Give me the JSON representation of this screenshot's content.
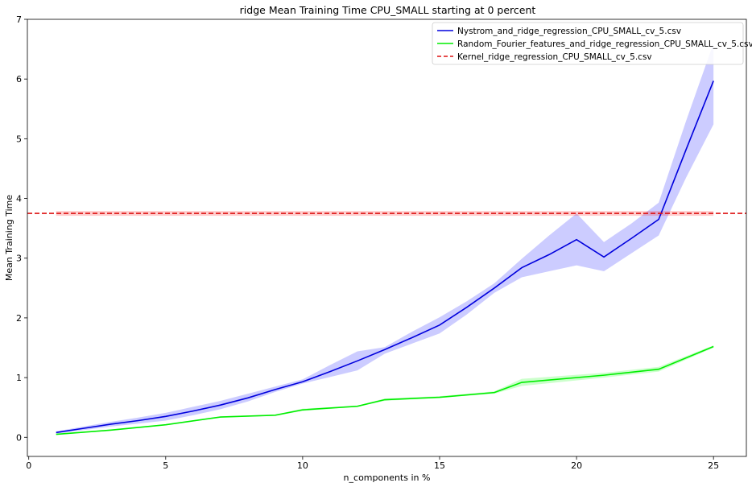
{
  "chart_data": {
    "type": "line",
    "title": "ridge Mean Training Time CPU_SMALL starting at 0 percent",
    "xlabel": "n_components in %",
    "ylabel": "Mean Training Time",
    "xlim": [
      -0.05,
      26.2
    ],
    "ylim": [
      -0.32,
      7.0
    ],
    "xticks": [
      0,
      5,
      10,
      15,
      20,
      25
    ],
    "yticks": [
      0,
      1,
      2,
      3,
      4,
      5,
      6,
      7
    ],
    "grid": false,
    "legend_position": "top-right",
    "series": [
      {
        "name": "Nystrom_and_ridge_regression_CPU_SMALL_cv_5.csv",
        "color": "#0000dd",
        "band_color": "#0000ff",
        "line_style": "solid",
        "x": [
          1,
          2,
          3,
          4,
          5,
          6,
          7,
          8,
          9,
          10,
          11,
          12,
          13,
          14,
          15,
          16,
          17,
          18,
          19,
          20,
          21,
          22,
          23,
          24,
          25
        ],
        "y": [
          0.08,
          0.15,
          0.22,
          0.28,
          0.35,
          0.44,
          0.54,
          0.66,
          0.8,
          0.93,
          1.1,
          1.28,
          1.47,
          1.67,
          1.88,
          2.18,
          2.5,
          2.84,
          3.06,
          3.31,
          3.02,
          3.33,
          3.65,
          4.82,
          5.97
        ],
        "lower": [
          0.06,
          0.12,
          0.18,
          0.23,
          0.28,
          0.37,
          0.47,
          0.6,
          0.76,
          0.9,
          1.01,
          1.12,
          1.4,
          1.57,
          1.74,
          2.06,
          2.42,
          2.68,
          2.78,
          2.88,
          2.78,
          3.08,
          3.38,
          4.35,
          5.24
        ],
        "upper": [
          0.1,
          0.18,
          0.26,
          0.33,
          0.41,
          0.51,
          0.61,
          0.73,
          0.85,
          0.97,
          1.21,
          1.44,
          1.51,
          1.77,
          2.01,
          2.28,
          2.58,
          2.99,
          3.38,
          3.75,
          3.27,
          3.58,
          3.93,
          5.3,
          6.6
        ]
      },
      {
        "name": "Random_Fourier_features_and_ridge_regression_CPU_SMALL_cv_5.csv",
        "color": "#00ee00",
        "band_color": "#00ff00",
        "line_style": "solid",
        "x": [
          1,
          3,
          5,
          7,
          9,
          10,
          12,
          13,
          15,
          17,
          18,
          21,
          23,
          25
        ],
        "y": [
          0.05,
          0.12,
          0.21,
          0.34,
          0.37,
          0.46,
          0.52,
          0.63,
          0.67,
          0.75,
          0.92,
          1.04,
          1.14,
          1.52
        ],
        "lower": [
          0.04,
          0.11,
          0.2,
          0.33,
          0.36,
          0.44,
          0.51,
          0.61,
          0.66,
          0.73,
          0.86,
          1.0,
          1.1,
          1.5
        ],
        "upper": [
          0.06,
          0.13,
          0.22,
          0.35,
          0.38,
          0.48,
          0.53,
          0.65,
          0.69,
          0.77,
          0.98,
          1.08,
          1.18,
          1.54
        ]
      },
      {
        "name": "Kernel_ridge_regression_CPU_SMALL_cv_5.csv",
        "color": "#dd1111",
        "band_color": "#ff2222",
        "line_style": "dashed",
        "y_constant": 3.75,
        "band_x": [
          1,
          25
        ],
        "lower": 3.71,
        "upper": 3.79
      }
    ]
  }
}
